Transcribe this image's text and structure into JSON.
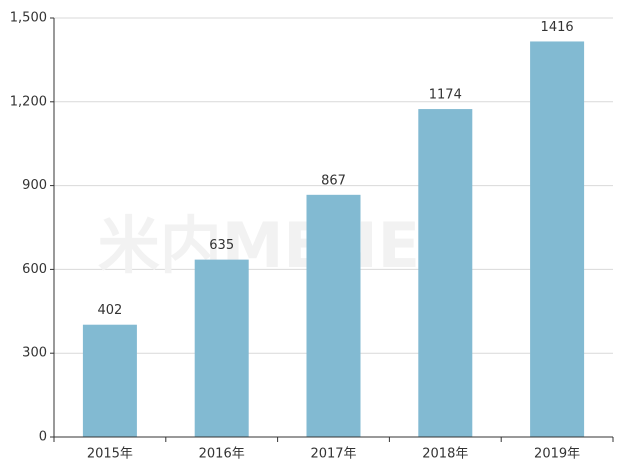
{
  "chart_data": {
    "type": "bar",
    "categories": [
      "2015年",
      "2016年",
      "2017年",
      "2018年",
      "2019年"
    ],
    "values": [
      402,
      635,
      867,
      1174,
      1416
    ],
    "color": "#82bad2",
    "ylim": [
      0,
      1500
    ],
    "yticks": [
      0,
      300,
      600,
      900,
      {
        "value": 1200,
        "label": "1,200"
      },
      {
        "value": 1500,
        "label": "1,500"
      }
    ],
    "grid": true,
    "watermark": "米内MENET"
  }
}
